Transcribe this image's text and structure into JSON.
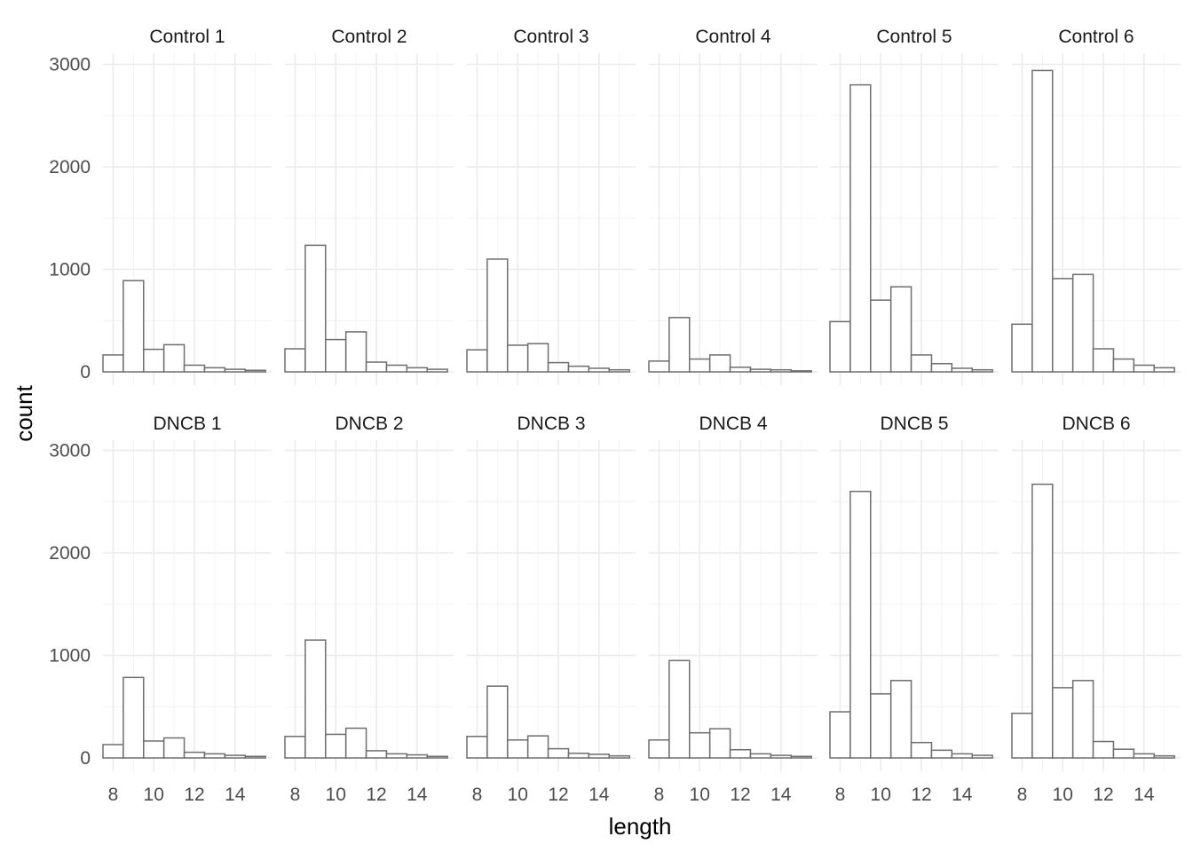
{
  "chart_data": {
    "type": "bar",
    "facet_layout": "2 rows x 6 columns",
    "xlabel": "length",
    "ylabel": "count",
    "x_ticks": [
      8,
      10,
      12,
      14
    ],
    "y_ticks": [
      0,
      1000,
      2000,
      3000
    ],
    "xlim": [
      7.5,
      15.8
    ],
    "ylim": [
      0,
      3100
    ],
    "grid": true,
    "bar_x": [
      8,
      9,
      10,
      11,
      12,
      13,
      14,
      15
    ],
    "panels": [
      {
        "label": "Control 1",
        "values": [
          165,
          890,
          220,
          265,
          65,
          40,
          25,
          15
        ]
      },
      {
        "label": "Control 2",
        "values": [
          225,
          1235,
          315,
          390,
          95,
          65,
          40,
          25
        ]
      },
      {
        "label": "Control 3",
        "values": [
          215,
          1100,
          260,
          275,
          90,
          55,
          35,
          20
        ]
      },
      {
        "label": "Control 4",
        "values": [
          105,
          530,
          125,
          165,
          45,
          25,
          20,
          10
        ]
      },
      {
        "label": "Control 5",
        "values": [
          490,
          2800,
          700,
          830,
          165,
          80,
          35,
          20
        ]
      },
      {
        "label": "Control 6",
        "values": [
          465,
          2940,
          910,
          950,
          225,
          125,
          65,
          40
        ]
      },
      {
        "label": "DNCB 1",
        "values": [
          130,
          785,
          165,
          195,
          55,
          40,
          25,
          15
        ]
      },
      {
        "label": "DNCB 2",
        "values": [
          210,
          1150,
          230,
          290,
          70,
          40,
          30,
          15
        ]
      },
      {
        "label": "DNCB 3",
        "values": [
          210,
          700,
          175,
          215,
          90,
          45,
          35,
          20
        ]
      },
      {
        "label": "DNCB 4",
        "values": [
          175,
          950,
          245,
          285,
          80,
          40,
          25,
          15
        ]
      },
      {
        "label": "DNCB 5",
        "values": [
          450,
          2600,
          625,
          755,
          150,
          75,
          40,
          25
        ]
      },
      {
        "label": "DNCB 6",
        "values": [
          435,
          2670,
          685,
          755,
          160,
          85,
          40,
          20
        ]
      }
    ]
  }
}
